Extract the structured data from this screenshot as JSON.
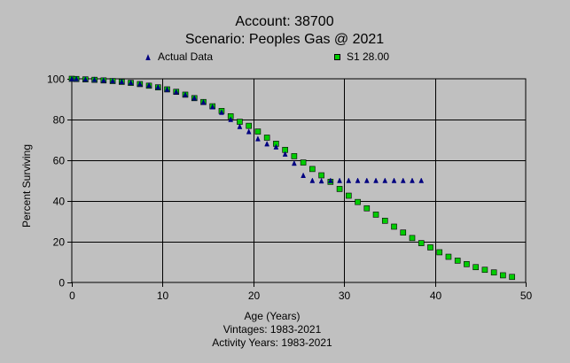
{
  "chart_data": {
    "type": "scatter",
    "title": "Account: 38700",
    "subtitle": "Scenario: Peoples Gas @ 2021",
    "xlabel": "Age (Years)",
    "ylabel": "Percent Surviving",
    "footer": [
      "Vintages: 1983-2021",
      "Activity Years: 1983-2021"
    ],
    "xlim": [
      0,
      50
    ],
    "ylim": [
      0,
      100
    ],
    "xticks": [
      0,
      10,
      20,
      30,
      40,
      50
    ],
    "yticks": [
      0,
      20,
      40,
      60,
      80,
      100
    ],
    "grid": true,
    "legend_position": "top",
    "series": [
      {
        "name": "Actual Data",
        "marker": "triangle",
        "color": "#000080",
        "x": [
          0,
          0.5,
          1.5,
          2.5,
          3.5,
          4.5,
          5.5,
          6.5,
          7.5,
          8.5,
          9.5,
          10.5,
          11.5,
          12.5,
          13.5,
          14.5,
          15.5,
          16.5,
          17.5,
          18.5,
          19.5,
          20.5,
          21.5,
          22.5,
          23.5,
          24.5,
          25.5,
          26.5,
          27.5,
          28.5,
          29.5,
          30.5,
          31.5,
          32.5,
          33.5,
          34.5,
          35.5,
          36.5,
          37.5,
          38.5
        ],
        "y": [
          100,
          100,
          99.8,
          99.6,
          99.3,
          99.0,
          98.6,
          98.1,
          97.5,
          96.8,
          95.9,
          94.8,
          93.6,
          92.2,
          90.6,
          88.5,
          86.2,
          83.5,
          80.0,
          76.5,
          74.0,
          70.5,
          68.0,
          66.5,
          63.0,
          58.5,
          52.5,
          50.0,
          49.8,
          50.0,
          50.0,
          50.0,
          50.0,
          50.0,
          50.0,
          50.0,
          50.0,
          50.0,
          50.0,
          50.0
        ]
      },
      {
        "name": "S1 28.00",
        "marker": "square",
        "color": "#00cc00",
        "x": [
          0,
          0.5,
          1.5,
          2.5,
          3.5,
          4.5,
          5.5,
          6.5,
          7.5,
          8.5,
          9.5,
          10.5,
          11.5,
          12.5,
          13.5,
          14.5,
          15.5,
          16.5,
          17.5,
          18.5,
          19.5,
          20.5,
          21.5,
          22.5,
          23.5,
          24.5,
          25.5,
          26.5,
          27.5,
          28.5,
          29.5,
          30.5,
          31.5,
          32.5,
          33.5,
          34.5,
          35.5,
          36.5,
          37.5,
          38.5,
          39.5,
          40.5,
          41.5,
          42.5,
          43.5,
          44.5,
          45.5,
          46.5,
          47.5,
          48.5
        ],
        "y": [
          100,
          99.9,
          99.7,
          99.5,
          99.2,
          98.9,
          98.5,
          98.0,
          97.4,
          96.6,
          95.8,
          94.8,
          93.6,
          92.2,
          90.5,
          88.6,
          86.5,
          84.2,
          81.6,
          78.9,
          76.9,
          74.1,
          71.1,
          68.1,
          65.1,
          62.0,
          58.9,
          55.7,
          52.6,
          49.4,
          45.9,
          42.6,
          39.5,
          36.4,
          33.3,
          30.3,
          27.4,
          24.5,
          21.8,
          19.3,
          17.2,
          14.8,
          12.6,
          10.7,
          9.0,
          7.5,
          6.2,
          4.9,
          3.5,
          2.7
        ]
      }
    ]
  }
}
